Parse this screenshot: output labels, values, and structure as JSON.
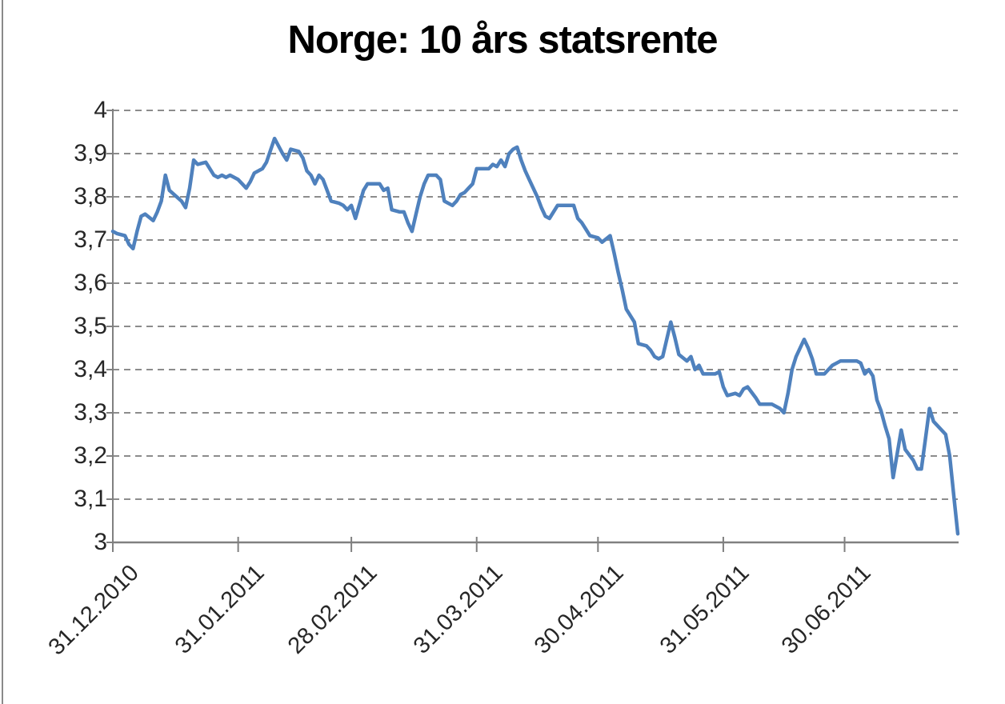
{
  "page": {
    "background": "#ffffff"
  },
  "chart_data": {
    "type": "line",
    "title": "Norge: 10 års statsrente",
    "xlabel": "",
    "ylabel": "",
    "ylim": [
      3,
      4
    ],
    "y_step": 0.1,
    "grid": "horizontal-dashed",
    "legend_position": "none",
    "decimal_separator": ",",
    "y_tick_labels": [
      "4",
      "3,9",
      "3,8",
      "3,7",
      "3,6",
      "3,5",
      "3,4",
      "3,3",
      "3,2",
      "3,1",
      "3"
    ],
    "x_tick_labels": [
      "31.12.2010",
      "31.01.2011",
      "28.02.2011",
      "31.03.2011",
      "30.04.2011",
      "31.05.2011",
      "30.06.2011"
    ],
    "colors": {
      "line": "#4F81BD",
      "grid": "#8C8C8C",
      "axis": "#808080",
      "tick_text": "#262626",
      "title_text": "#000000"
    },
    "series": [
      {
        "name": "10 års statsrente",
        "color": "#4F81BD",
        "points": [
          [
            "31.12.2010",
            3.72
          ],
          [
            "01.01.2011",
            3.715
          ],
          [
            "03.01.2011",
            3.71
          ],
          [
            "04.01.2011",
            3.69
          ],
          [
            "05.01.2011",
            3.68
          ],
          [
            "06.01.2011",
            3.72
          ],
          [
            "07.01.2011",
            3.755
          ],
          [
            "08.01.2011",
            3.76
          ],
          [
            "10.01.2011",
            3.745
          ],
          [
            "11.01.2011",
            3.765
          ],
          [
            "12.01.2011",
            3.79
          ],
          [
            "13.01.2011",
            3.85
          ],
          [
            "14.01.2011",
            3.815
          ],
          [
            "17.01.2011",
            3.79
          ],
          [
            "18.01.2011",
            3.775
          ],
          [
            "19.01.2011",
            3.82
          ],
          [
            "20.01.2011",
            3.885
          ],
          [
            "21.01.2011",
            3.875
          ],
          [
            "23.01.2011",
            3.88
          ],
          [
            "24.01.2011",
            3.865
          ],
          [
            "25.01.2011",
            3.85
          ],
          [
            "26.01.2011",
            3.845
          ],
          [
            "27.01.2011",
            3.85
          ],
          [
            "28.01.2011",
            3.845
          ],
          [
            "29.01.2011",
            3.85
          ],
          [
            "31.01.2011",
            3.84
          ],
          [
            "01.02.2011",
            3.83
          ],
          [
            "02.02.2011",
            3.82
          ],
          [
            "03.02.2011",
            3.835
          ],
          [
            "04.02.2011",
            3.855
          ],
          [
            "06.02.2011",
            3.865
          ],
          [
            "07.02.2011",
            3.88
          ],
          [
            "09.02.2011",
            3.935
          ],
          [
            "11.02.2011",
            3.9
          ],
          [
            "12.02.2011",
            3.885
          ],
          [
            "13.02.2011",
            3.91
          ],
          [
            "15.02.2011",
            3.905
          ],
          [
            "16.02.2011",
            3.89
          ],
          [
            "17.02.2011",
            3.86
          ],
          [
            "18.02.2011",
            3.85
          ],
          [
            "19.02.2011",
            3.83
          ],
          [
            "20.02.2011",
            3.85
          ],
          [
            "21.02.2011",
            3.84
          ],
          [
            "22.02.2011",
            3.815
          ],
          [
            "23.02.2011",
            3.79
          ],
          [
            "25.02.2011",
            3.785
          ],
          [
            "26.02.2011",
            3.78
          ],
          [
            "27.02.2011",
            3.77
          ],
          [
            "28.02.2011",
            3.78
          ],
          [
            "01.03.2011",
            3.75
          ],
          [
            "03.03.2011",
            3.815
          ],
          [
            "04.03.2011",
            3.83
          ],
          [
            "07.03.2011",
            3.83
          ],
          [
            "08.03.2011",
            3.815
          ],
          [
            "09.03.2011",
            3.82
          ],
          [
            "10.03.2011",
            3.77
          ],
          [
            "12.03.2011",
            3.765
          ],
          [
            "13.03.2011",
            3.765
          ],
          [
            "14.03.2011",
            3.74
          ],
          [
            "15.03.2011",
            3.72
          ],
          [
            "16.03.2011",
            3.76
          ],
          [
            "17.03.2011",
            3.8
          ],
          [
            "18.03.2011",
            3.83
          ],
          [
            "19.03.2011",
            3.85
          ],
          [
            "21.03.2011",
            3.85
          ],
          [
            "22.03.2011",
            3.84
          ],
          [
            "23.03.2011",
            3.79
          ],
          [
            "25.03.2011",
            3.78
          ],
          [
            "26.03.2011",
            3.79
          ],
          [
            "27.03.2011",
            3.805
          ],
          [
            "28.03.2011",
            3.81
          ],
          [
            "29.03.2011",
            3.82
          ],
          [
            "30.03.2011",
            3.83
          ],
          [
            "31.03.2011",
            3.865
          ],
          [
            "03.04.2011",
            3.865
          ],
          [
            "04.04.2011",
            3.875
          ],
          [
            "05.04.2011",
            3.87
          ],
          [
            "06.04.2011",
            3.885
          ],
          [
            "07.04.2011",
            3.87
          ],
          [
            "08.04.2011",
            3.9
          ],
          [
            "09.04.2011",
            3.91
          ],
          [
            "10.04.2011",
            3.915
          ],
          [
            "11.04.2011",
            3.885
          ],
          [
            "12.04.2011",
            3.86
          ],
          [
            "13.04.2011",
            3.84
          ],
          [
            "15.04.2011",
            3.8
          ],
          [
            "16.04.2011",
            3.775
          ],
          [
            "17.04.2011",
            3.755
          ],
          [
            "18.04.2011",
            3.75
          ],
          [
            "20.04.2011",
            3.78
          ],
          [
            "24.04.2011",
            3.78
          ],
          [
            "25.04.2011",
            3.75
          ],
          [
            "26.04.2011",
            3.74
          ],
          [
            "27.04.2011",
            3.725
          ],
          [
            "28.04.2011",
            3.71
          ],
          [
            "30.04.2011",
            3.705
          ],
          [
            "01.05.2011",
            3.695
          ],
          [
            "03.05.2011",
            3.71
          ],
          [
            "04.05.2011",
            3.67
          ],
          [
            "05.05.2011",
            3.625
          ],
          [
            "06.05.2011",
            3.585
          ],
          [
            "07.05.2011",
            3.54
          ],
          [
            "09.05.2011",
            3.51
          ],
          [
            "10.05.2011",
            3.46
          ],
          [
            "12.05.2011",
            3.455
          ],
          [
            "13.05.2011",
            3.445
          ],
          [
            "14.05.2011",
            3.43
          ],
          [
            "15.05.2011",
            3.425
          ],
          [
            "16.05.2011",
            3.43
          ],
          [
            "18.05.2011",
            3.51
          ],
          [
            "19.05.2011",
            3.475
          ],
          [
            "20.05.2011",
            3.435
          ],
          [
            "22.05.2011",
            3.42
          ],
          [
            "23.05.2011",
            3.43
          ],
          [
            "24.05.2011",
            3.4
          ],
          [
            "25.05.2011",
            3.41
          ],
          [
            "26.05.2011",
            3.39
          ],
          [
            "29.05.2011",
            3.39
          ],
          [
            "30.05.2011",
            3.395
          ],
          [
            "31.05.2011",
            3.36
          ],
          [
            "01.06.2011",
            3.34
          ],
          [
            "03.06.2011",
            3.345
          ],
          [
            "04.06.2011",
            3.34
          ],
          [
            "05.06.2011",
            3.355
          ],
          [
            "06.06.2011",
            3.36
          ],
          [
            "08.06.2011",
            3.335
          ],
          [
            "09.06.2011",
            3.32
          ],
          [
            "12.06.2011",
            3.32
          ],
          [
            "14.06.2011",
            3.31
          ],
          [
            "15.06.2011",
            3.3
          ],
          [
            "16.06.2011",
            3.345
          ],
          [
            "17.06.2011",
            3.4
          ],
          [
            "18.06.2011",
            3.43
          ],
          [
            "20.06.2011",
            3.47
          ],
          [
            "21.06.2011",
            3.45
          ],
          [
            "22.06.2011",
            3.425
          ],
          [
            "23.06.2011",
            3.39
          ],
          [
            "25.06.2011",
            3.39
          ],
          [
            "26.06.2011",
            3.4
          ],
          [
            "27.06.2011",
            3.41
          ],
          [
            "29.06.2011",
            3.42
          ],
          [
            "03.07.2011",
            3.42
          ],
          [
            "04.07.2011",
            3.415
          ],
          [
            "05.07.2011",
            3.39
          ],
          [
            "06.07.2011",
            3.4
          ],
          [
            "07.07.2011",
            3.385
          ],
          [
            "08.07.2011",
            3.33
          ],
          [
            "09.07.2011",
            3.305
          ],
          [
            "10.07.2011",
            3.27
          ],
          [
            "11.07.2011",
            3.24
          ],
          [
            "12.07.2011",
            3.15
          ],
          [
            "14.07.2011",
            3.26
          ],
          [
            "15.07.2011",
            3.215
          ],
          [
            "17.07.2011",
            3.19
          ],
          [
            "18.07.2011",
            3.17
          ],
          [
            "19.07.2011",
            3.17
          ],
          [
            "20.07.2011",
            3.24
          ],
          [
            "21.07.2011",
            3.31
          ],
          [
            "22.07.2011",
            3.28
          ],
          [
            "23.07.2011",
            3.27
          ],
          [
            "25.07.2011",
            3.25
          ],
          [
            "26.07.2011",
            3.2
          ],
          [
            "27.07.2011",
            3.11
          ],
          [
            "28.07.2011",
            3.02
          ]
        ]
      }
    ]
  }
}
